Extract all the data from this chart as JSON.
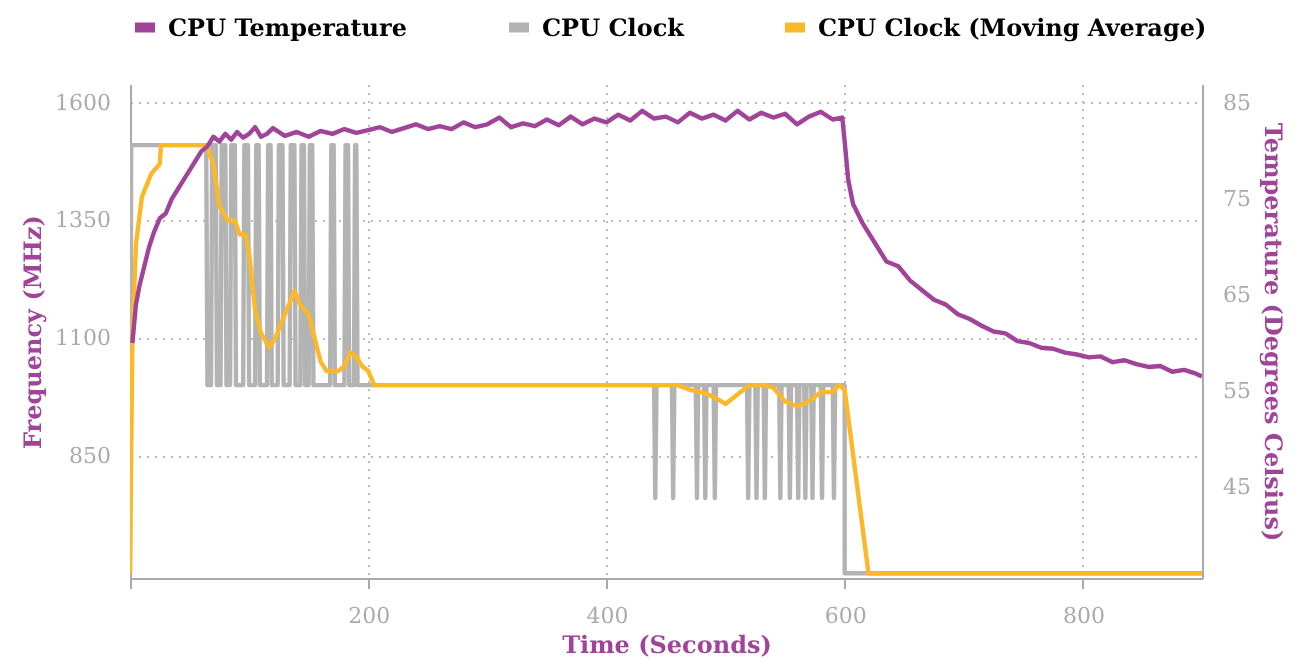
{
  "chart_data": {
    "type": "line",
    "xlabel": "Time (Seconds)",
    "ylabel": "Frequency (MHz)",
    "y2label": "Temperature (Degrees Celsius)",
    "xlim": [
      0,
      900
    ],
    "xticks": [
      {
        "value": 0,
        "label": null
      },
      200,
      400,
      600,
      800
    ],
    "ylim": [
      590,
      1640
    ],
    "yticks": [
      850,
      1100,
      1350,
      1600
    ],
    "y2lim": [
      35.5,
      87
    ],
    "y2ticks": [
      45,
      55,
      65,
      75,
      85
    ],
    "grid": true,
    "legend": "top",
    "marker": "none",
    "line_style": "solid",
    "series": [
      {
        "name": "CPU Temperature",
        "color": "#a0449a",
        "axis": "y2",
        "x": [
          2,
          5,
          8,
          12,
          16,
          20,
          25,
          30,
          35,
          40,
          45,
          50,
          55,
          60,
          65,
          70,
          75,
          80,
          85,
          90,
          95,
          100,
          105,
          110,
          115,
          120,
          130,
          140,
          150,
          160,
          170,
          180,
          190,
          200,
          210,
          220,
          230,
          240,
          250,
          260,
          270,
          280,
          290,
          300,
          310,
          320,
          330,
          340,
          350,
          360,
          370,
          380,
          390,
          400,
          410,
          420,
          430,
          440,
          450,
          460,
          470,
          480,
          490,
          500,
          510,
          520,
          530,
          540,
          550,
          560,
          570,
          580,
          590,
          598,
          600,
          603,
          607,
          615,
          625,
          635,
          645,
          655,
          665,
          675,
          685,
          695,
          705,
          715,
          725,
          735,
          745,
          755,
          765,
          775,
          785,
          795,
          805,
          815,
          825,
          835,
          845,
          855,
          865,
          875,
          885,
          895,
          900
        ],
        "values": [
          60,
          64,
          66,
          68,
          70,
          71.5,
          73,
          73.5,
          75,
          76,
          77,
          78,
          79,
          80,
          80.5,
          81.5,
          81,
          81.8,
          81.2,
          82,
          81.4,
          81.8,
          82.5,
          81.5,
          81.8,
          82.4,
          81.6,
          82,
          81.5,
          82.1,
          81.8,
          82.3,
          81.9,
          82.2,
          82.5,
          82,
          82.4,
          82.8,
          82.3,
          82.6,
          82.3,
          83,
          82.5,
          82.8,
          83.5,
          82.5,
          82.9,
          82.6,
          83.3,
          82.7,
          83.6,
          82.8,
          83.4,
          83,
          83.8,
          83.2,
          84.2,
          83.4,
          83.6,
          83,
          84,
          83.4,
          83.8,
          83.2,
          84.2,
          83.3,
          84,
          83.5,
          83.9,
          82.8,
          83.6,
          84.1,
          83.3,
          83.5,
          81,
          77,
          74.5,
          72.5,
          70.5,
          68.5,
          68,
          66.5,
          65.5,
          64.5,
          64,
          63,
          62.5,
          61.8,
          61.2,
          61,
          60.2,
          60,
          59.5,
          59.4,
          59,
          58.8,
          58.5,
          58.6,
          58,
          58.2,
          57.8,
          57.5,
          57.6,
          57,
          57.2,
          56.8,
          56.5
        ]
      },
      {
        "name": "CPU Clock",
        "color": "#b3b3b3",
        "x": [
          0,
          1,
          64,
          65,
          68,
          69,
          72,
          73,
          76,
          77,
          80,
          81,
          84,
          85,
          88,
          89,
          95,
          96,
          99,
          100,
          105,
          106,
          108,
          109,
          115,
          116,
          118,
          119,
          124,
          125,
          128,
          129,
          134,
          135,
          138,
          139,
          143,
          144,
          146,
          147,
          150,
          151,
          153,
          154,
          168,
          169,
          171,
          172,
          180,
          181,
          183,
          184,
          188,
          189,
          190,
          191,
          440,
          441,
          442,
          455,
          456,
          457,
          475,
          476,
          477,
          482,
          483,
          484,
          490,
          491,
          492,
          518,
          519,
          520,
          525,
          526,
          527,
          532,
          533,
          534,
          545,
          546,
          547,
          553,
          554,
          555,
          560,
          561,
          562,
          566,
          567,
          568,
          572,
          573,
          574,
          580,
          581,
          582,
          590,
          591,
          592,
          600,
          600,
          900
        ],
        "values": [
          600,
          1510,
          1510,
          1000,
          1000,
          1510,
          1510,
          1000,
          1000,
          1510,
          1510,
          1000,
          1000,
          1510,
          1510,
          1000,
          1000,
          1510,
          1510,
          1000,
          1000,
          1510,
          1510,
          1000,
          1000,
          1510,
          1510,
          1000,
          1000,
          1510,
          1510,
          1000,
          1000,
          1510,
          1510,
          1000,
          1000,
          1510,
          1510,
          1000,
          1000,
          1510,
          1510,
          1000,
          1000,
          1510,
          1510,
          1000,
          1000,
          1510,
          1510,
          1000,
          1000,
          1510,
          1510,
          1000,
          1000,
          760,
          1000,
          1000,
          760,
          1000,
          1000,
          760,
          1000,
          1000,
          760,
          1000,
          1000,
          760,
          1000,
          1000,
          760,
          1000,
          1000,
          760,
          1000,
          1000,
          760,
          1000,
          1000,
          760,
          1000,
          1000,
          760,
          1000,
          1000,
          760,
          1000,
          1000,
          760,
          1000,
          1000,
          760,
          1000,
          1000,
          760,
          1000,
          1000,
          760,
          1000,
          1000,
          600,
          600
        ]
      },
      {
        "name": "CPU Clock (Moving Average)",
        "color": "#fbb829",
        "x": [
          0,
          2,
          5,
          10,
          18,
          25,
          26,
          64,
          70,
          75,
          82,
          88,
          92,
          97,
          100,
          105,
          110,
          117,
          122,
          130,
          138,
          143,
          150,
          155,
          160,
          165,
          170,
          175,
          180,
          185,
          190,
          195,
          200,
          205,
          440,
          460,
          470,
          480,
          490,
          500,
          510,
          520,
          530,
          540,
          550,
          560,
          570,
          580,
          590,
          595,
          600,
          620,
          900
        ],
        "values": [
          600,
          1100,
          1300,
          1400,
          1450,
          1470,
          1510,
          1510,
          1470,
          1380,
          1350,
          1350,
          1320,
          1320,
          1280,
          1160,
          1110,
          1080,
          1100,
          1150,
          1200,
          1170,
          1150,
          1100,
          1050,
          1030,
          1030,
          1030,
          1040,
          1070,
          1060,
          1040,
          1030,
          1000,
          1000,
          1000,
          990,
          985,
          975,
          960,
          980,
          1000,
          1000,
          995,
          965,
          955,
          965,
          985,
          985,
          1000,
          990,
          600,
          600
        ]
      }
    ]
  }
}
